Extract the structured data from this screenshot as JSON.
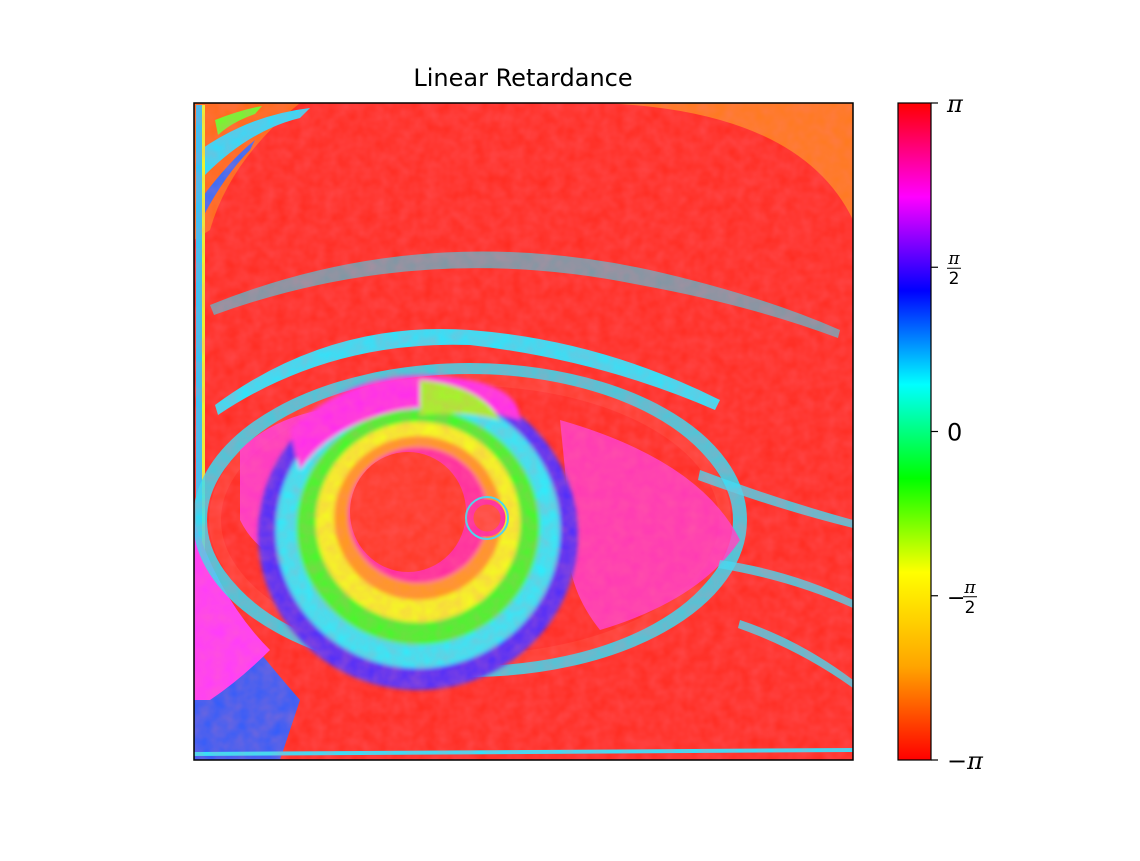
{
  "chart_data": {
    "type": "heatmap",
    "title": "Linear Retardance",
    "xlabel": "",
    "ylabel": "",
    "grid": false,
    "axis_ticks_shown": false,
    "colormap": "hsv",
    "colormap_stops": [
      "#ff0000",
      "#ffa500",
      "#ffff00",
      "#00ff00",
      "#00ffff",
      "#0000ff",
      "#ff00ff",
      "#ff0000"
    ],
    "colorbar": {
      "range": [
        -3.14159,
        3.14159
      ],
      "ticks": [
        {
          "value": 3.14159,
          "label": "π"
        },
        {
          "value": 1.5708,
          "label_num": "π",
          "label_den": "2"
        },
        {
          "value": 0,
          "label": "0"
        },
        {
          "value": -1.5708,
          "label_sign": "−",
          "label_num": "π",
          "label_den": "2"
        },
        {
          "value": -3.14159,
          "label": "−π"
        }
      ]
    },
    "dominant_value": 3.0
  }
}
